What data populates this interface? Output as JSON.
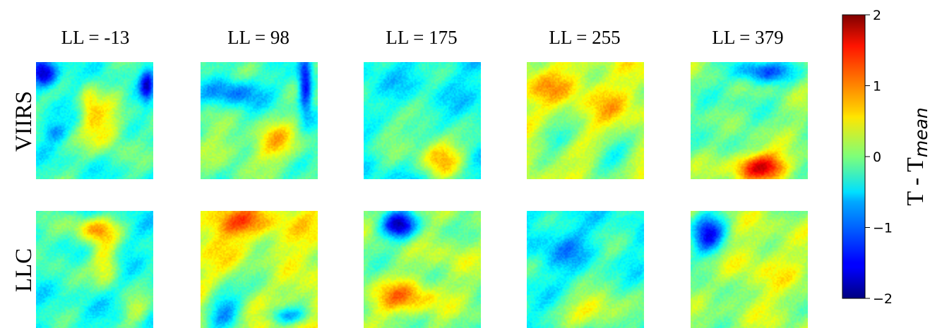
{
  "chart_data": {
    "type": "heatmap",
    "columns": [
      "LL = -13",
      "LL = 98",
      "LL = 175",
      "LL = 255",
      "LL = 379"
    ],
    "rows": [
      "VIIRS",
      "LLC"
    ],
    "colorbar": {
      "label_main": "T - T",
      "label_sub": "mean",
      "vmin": -2,
      "vmax": 2,
      "ticks": [
        2,
        1,
        0,
        -1,
        -2
      ],
      "tick_labels": [
        "2",
        "1",
        "0",
        "−1",
        "−2"
      ],
      "colormap": "jet"
    },
    "grid": false,
    "panels": [
      [
        {
          "base": -0.3,
          "blobs": [
            [
              0.06,
              0.1,
              0.12,
              0.12,
              -1.6
            ],
            [
              0.6,
              0.55,
              0.18,
              0.22,
              0.9
            ],
            [
              0.45,
              0.35,
              0.08,
              0.2,
              0.6
            ],
            [
              0.95,
              0.2,
              0.06,
              0.15,
              -1.1
            ],
            [
              0.15,
              0.6,
              0.1,
              0.08,
              -0.6
            ]
          ]
        },
        {
          "base": -0.2,
          "blobs": [
            [
              0.3,
              0.25,
              0.25,
              0.12,
              -0.9
            ],
            [
              0.9,
              0.2,
              0.06,
              0.25,
              -1.5
            ],
            [
              0.65,
              0.7,
              0.2,
              0.2,
              0.8
            ],
            [
              0.2,
              0.75,
              0.2,
              0.15,
              0.5
            ]
          ]
        },
        {
          "base": -0.5,
          "blobs": [
            [
              0.65,
              0.8,
              0.2,
              0.2,
              1.3
            ],
            [
              0.2,
              0.6,
              0.2,
              0.2,
              0.5
            ],
            [
              0.55,
              0.3,
              0.2,
              0.25,
              0.1
            ]
          ]
        },
        {
          "base": 0.3,
          "blobs": [
            [
              0.2,
              0.2,
              0.3,
              0.15,
              0.4
            ],
            [
              0.25,
              0.65,
              0.2,
              0.12,
              -0.6
            ],
            [
              0.75,
              0.8,
              0.2,
              0.15,
              -0.7
            ],
            [
              0.7,
              0.4,
              0.2,
              0.2,
              0.3
            ]
          ]
        },
        {
          "base": 0.0,
          "blobs": [
            [
              0.6,
              0.08,
              0.25,
              0.1,
              -1.2
            ],
            [
              0.6,
              0.9,
              0.25,
              0.12,
              1.6
            ],
            [
              0.2,
              0.6,
              0.2,
              0.15,
              -0.3
            ],
            [
              0.4,
              0.3,
              0.25,
              0.15,
              -0.2
            ]
          ]
        }
      ],
      [
        {
          "base": -0.4,
          "blobs": [
            [
              0.5,
              0.15,
              0.2,
              0.12,
              1.1
            ],
            [
              0.6,
              0.45,
              0.12,
              0.2,
              0.9
            ],
            [
              0.2,
              0.4,
              0.15,
              0.3,
              0.3
            ],
            [
              0.85,
              0.85,
              0.12,
              0.12,
              0.6
            ]
          ]
        },
        {
          "base": 0.4,
          "blobs": [
            [
              0.2,
              0.85,
              0.18,
              0.2,
              -1.2
            ],
            [
              0.75,
              0.9,
              0.2,
              0.08,
              -1.1
            ],
            [
              0.3,
              0.1,
              0.3,
              0.12,
              0.7
            ],
            [
              0.55,
              0.55,
              0.2,
              0.2,
              -0.5
            ]
          ]
        },
        {
          "base": 0.0,
          "blobs": [
            [
              0.3,
              0.12,
              0.15,
              0.12,
              -1.6
            ],
            [
              0.35,
              0.75,
              0.3,
              0.15,
              0.9
            ],
            [
              0.75,
              0.4,
              0.2,
              0.2,
              0.3
            ]
          ]
        },
        {
          "base": -0.4,
          "blobs": [
            [
              0.3,
              0.3,
              0.25,
              0.2,
              -0.4
            ],
            [
              0.6,
              0.85,
              0.3,
              0.15,
              1.0
            ],
            [
              0.75,
              0.5,
              0.15,
              0.2,
              0.2
            ]
          ]
        },
        {
          "base": 0.1,
          "blobs": [
            [
              0.15,
              0.2,
              0.15,
              0.2,
              -1.4
            ],
            [
              0.6,
              0.5,
              0.35,
              0.35,
              0.3
            ],
            [
              0.2,
              0.75,
              0.15,
              0.2,
              -0.3
            ]
          ]
        }
      ]
    ]
  }
}
